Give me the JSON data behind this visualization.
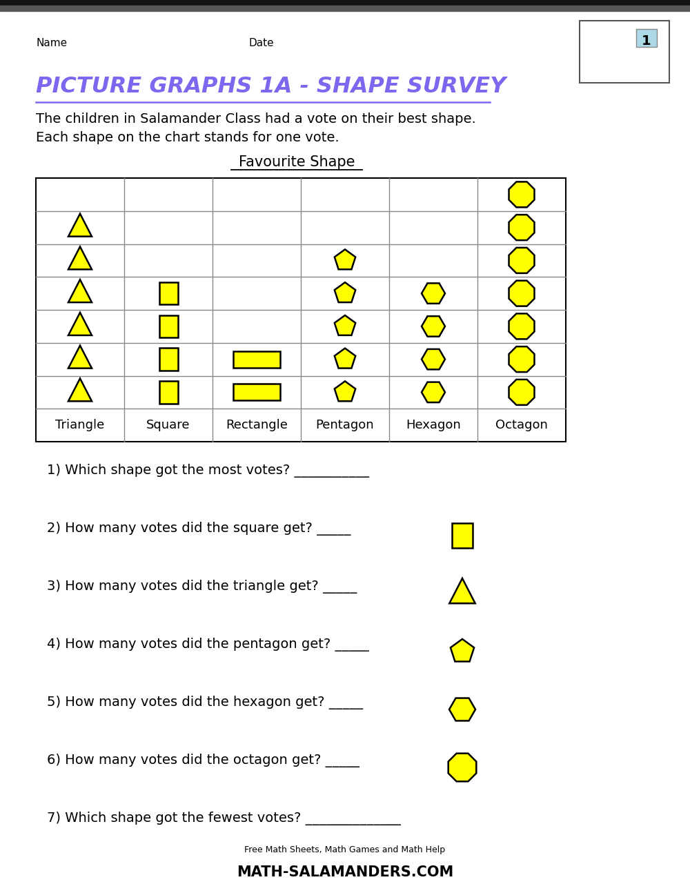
{
  "title": "PICTURE GRAPHS 1A - SHAPE SURVEY",
  "subtitle_line1": "The children in Salamander Class had a vote on their best shape.",
  "subtitle_line2": "Each shape on the chart stands for one vote.",
  "chart_title": "Favourite Shape",
  "name_label": "Name",
  "date_label": "Date",
  "columns": [
    "Triangle",
    "Square",
    "Rectangle",
    "Pentagon",
    "Hexagon",
    "Octagon"
  ],
  "votes": [
    6,
    4,
    2,
    5,
    4,
    7
  ],
  "max_rows": 7,
  "shape_color": "#FFFF00",
  "shape_edge_color": "#000000",
  "grid_line_color": "#888888",
  "bg_color": "#FFFFFF",
  "title_color": "#7B68EE",
  "questions": [
    "1) Which shape got the most votes? ___________",
    "2) How many votes did the square get? _____",
    "3) How many votes did the triangle get? _____",
    "4) How many votes did the pentagon get? _____",
    "5) How many votes did the hexagon get? _____",
    "6) How many votes did the octagon get? _____",
    "7) Which shape got the fewest votes? ______________"
  ],
  "question_shapes": [
    "none",
    "square",
    "triangle",
    "pentagon",
    "hexagon",
    "octagon",
    "none"
  ],
  "figsize": [
    10.0,
    12.94
  ],
  "dpi": 100
}
